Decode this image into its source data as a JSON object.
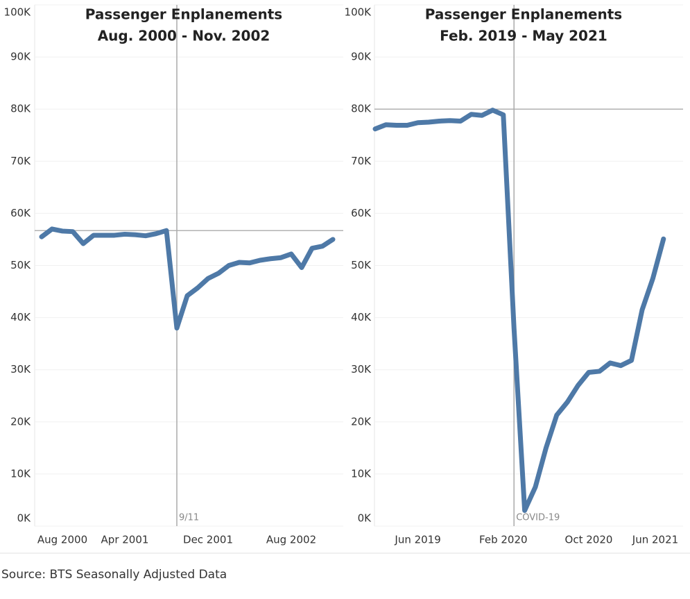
{
  "chart_data": [
    {
      "type": "line",
      "title": "Passenger Enplanements",
      "subtitle": "Aug. 2000 - Nov. 2002",
      "categories": [
        "Aug 2000",
        null,
        null,
        null,
        null,
        null,
        null,
        null,
        "Apr 2001",
        null,
        null,
        null,
        null,
        null,
        null,
        null,
        "Dec 2001",
        null,
        null,
        null,
        null,
        null,
        null,
        null,
        "Aug 2002",
        null,
        null,
        null,
        null
      ],
      "series": [
        {
          "name": "Passenger Enplanements",
          "color": "#4e79a7",
          "values": [
            55500,
            57000,
            56600,
            56500,
            54200,
            55800,
            55800,
            55800,
            56000,
            55900,
            55700,
            56100,
            56700,
            38000,
            44200,
            45700,
            47500,
            48500,
            50000,
            50600,
            50500,
            51000,
            51300,
            51500,
            52200,
            49600,
            53300,
            53700,
            55000
          ]
        }
      ],
      "ylim": [
        0,
        100000
      ],
      "yticks": [
        {
          "value": 0,
          "label": "0K"
        },
        {
          "value": 10000,
          "label": "10K"
        },
        {
          "value": 20000,
          "label": "20K"
        },
        {
          "value": 30000,
          "label": "30K"
        },
        {
          "value": 40000,
          "label": "40K"
        },
        {
          "value": 50000,
          "label": "50K"
        },
        {
          "value": 60000,
          "label": "60K"
        },
        {
          "value": 70000,
          "label": "70K"
        },
        {
          "value": 80000,
          "label": "80K"
        },
        {
          "value": 90000,
          "label": "90K"
        },
        {
          "value": 100000,
          "label": "100K"
        }
      ],
      "grid": true,
      "hline": 56700,
      "vline": {
        "x": 13,
        "label": "9/11"
      }
    },
    {
      "type": "line",
      "title": "Passenger Enplanements",
      "subtitle": "Feb. 2019 - May 2021",
      "categories": [
        null,
        null,
        null,
        null,
        "Jun 2019",
        null,
        null,
        null,
        null,
        null,
        null,
        null,
        "Feb 2020",
        null,
        null,
        null,
        null,
        null,
        null,
        null,
        "Oct 2020",
        null,
        null,
        null,
        null,
        null,
        null,
        null,
        "Jun 2021"
      ],
      "series": [
        {
          "name": "Passenger Enplanements",
          "color": "#4e79a7",
          "values": [
            76200,
            77000,
            76900,
            76900,
            77400,
            77500,
            77700,
            77800,
            77700,
            79000,
            78800,
            79800,
            78900,
            38000,
            3000,
            7500,
            15000,
            21300,
            23800,
            27000,
            29500,
            29700,
            31300,
            30800,
            31800,
            41500,
            47500,
            55100,
            null
          ]
        }
      ],
      "ylim": [
        0,
        100000
      ],
      "yticks": [
        {
          "value": 0,
          "label": "0K"
        },
        {
          "value": 10000,
          "label": "10K"
        },
        {
          "value": 20000,
          "label": "20K"
        },
        {
          "value": 30000,
          "label": "30K"
        },
        {
          "value": 40000,
          "label": "40K"
        },
        {
          "value": 50000,
          "label": "50K"
        },
        {
          "value": 60000,
          "label": "60K"
        },
        {
          "value": 70000,
          "label": "70K"
        },
        {
          "value": 80000,
          "label": "80K"
        },
        {
          "value": 90000,
          "label": "90K"
        },
        {
          "value": 100000,
          "label": "100K"
        }
      ],
      "grid": true,
      "hline": 80000,
      "vline": {
        "x": 13,
        "label": "COVID-19"
      }
    }
  ],
  "source": "Source: BTS Seasonally Adjusted Data"
}
